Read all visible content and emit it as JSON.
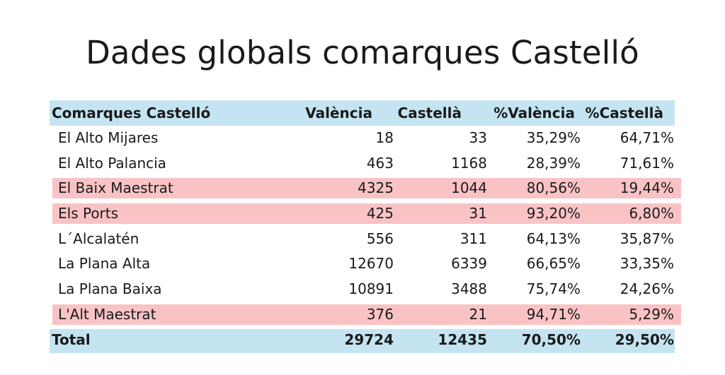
{
  "title": "Dades globals comarques Castelló",
  "table": {
    "headers": [
      "Comarques Castelló",
      "València",
      "Castellà",
      "%València",
      "%Castellà"
    ],
    "rows": [
      {
        "name": "El Alto Mijares",
        "valencia": "18",
        "castella": "33",
        "pct_valencia": "35,29%",
        "pct_castella": "64,71%",
        "highlight": false
      },
      {
        "name": "El Alto Palancia",
        "valencia": "463",
        "castella": "1168",
        "pct_valencia": "28,39%",
        "pct_castella": "71,61%",
        "highlight": false
      },
      {
        "name": "El Baix Maestrat",
        "valencia": "4325",
        "castella": "1044",
        "pct_valencia": "80,56%",
        "pct_castella": "19,44%",
        "highlight": true
      },
      {
        "name": "Els Ports",
        "valencia": "425",
        "castella": "31",
        "pct_valencia": "93,20%",
        "pct_castella": "6,80%",
        "highlight": true
      },
      {
        "name": "L´Alcalatén",
        "valencia": "556",
        "castella": "311",
        "pct_valencia": "64,13%",
        "pct_castella": "35,87%",
        "highlight": false
      },
      {
        "name": "La Plana Alta",
        "valencia": "12670",
        "castella": "6339",
        "pct_valencia": "66,65%",
        "pct_castella": "33,35%",
        "highlight": false
      },
      {
        "name": "La Plana Baixa",
        "valencia": "10891",
        "castella": "3488",
        "pct_valencia": "75,74%",
        "pct_castella": "24,26%",
        "highlight": false
      },
      {
        "name": "L'Alt Maestrat",
        "valencia": "376",
        "castella": "21",
        "pct_valencia": "94,71%",
        "pct_castella": "5,29%",
        "highlight": true
      }
    ],
    "total": {
      "name": "Total",
      "valencia": "29724",
      "castella": "12435",
      "pct_valencia": "70,50%",
      "pct_castella": "29,50%"
    }
  },
  "colors": {
    "header_bg": "#c4e4f2",
    "highlight_bg": "#f9c3c6"
  }
}
